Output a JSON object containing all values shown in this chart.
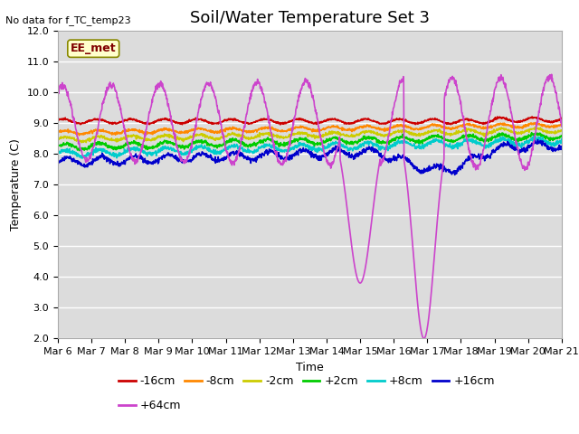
{
  "title": "Soil/Water Temperature Set 3",
  "no_data_text": "No data for f_TC_temp23",
  "xlabel": "Time",
  "ylabel": "Temperature (C)",
  "ylim": [
    2.0,
    12.0
  ],
  "yticks": [
    2.0,
    3.0,
    4.0,
    5.0,
    6.0,
    7.0,
    8.0,
    9.0,
    10.0,
    11.0,
    12.0
  ],
  "bg_color": "#dcdcdc",
  "fig_color": "#ffffff",
  "eemet_label": "EE_met",
  "eemet_box_color": "#ffffcc",
  "eemet_text_color": "#800000",
  "series": [
    {
      "label": "-16cm",
      "color": "#cc0000"
    },
    {
      "label": "-8cm",
      "color": "#ff8800"
    },
    {
      "label": "-2cm",
      "color": "#cccc00"
    },
    {
      "label": "+2cm",
      "color": "#00cc00"
    },
    {
      "label": "+8cm",
      "color": "#00cccc"
    },
    {
      "label": "+16cm",
      "color": "#0000cc"
    },
    {
      "label": "+64cm",
      "color": "#cc44cc"
    }
  ],
  "n_days": 15,
  "n_points": 1500,
  "xtick_labels": [
    "Mar 6",
    "Mar 7",
    "Mar 8",
    "Mar 9",
    "Mar 10",
    "Mar 11",
    "Mar 12",
    "Mar 13",
    "Mar 14",
    "Mar 15",
    "Mar 16",
    "Mar 17",
    "Mar 18",
    "Mar 19",
    "Mar 20",
    "Mar 21"
  ],
  "title_fontsize": 13,
  "label_fontsize": 9,
  "tick_fontsize": 8,
  "legend_fontsize": 9
}
